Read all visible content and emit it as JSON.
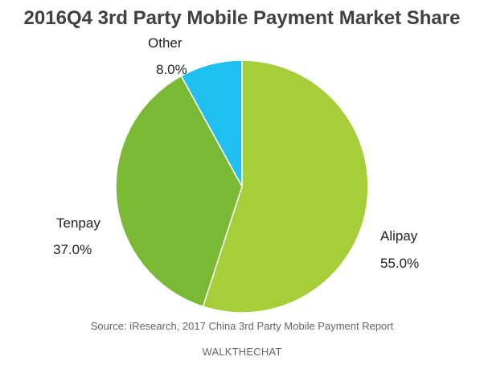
{
  "chart_data": {
    "type": "pie",
    "title": "2016Q4 3rd Party Mobile Payment Market Share",
    "slices": [
      {
        "label": "Alipay",
        "value": 55.0,
        "value_label": "55.0%",
        "color": "#a6ce39"
      },
      {
        "label": "Tenpay",
        "value": 37.0,
        "value_label": "37.0%",
        "color": "#7ab934"
      },
      {
        "label": "Other",
        "value": 8.0,
        "value_label": "8.0%",
        "color": "#1fc0f0"
      }
    ],
    "start_angle": "12 o'clock",
    "direction": "clockwise",
    "legend": "none"
  },
  "footer": {
    "source": "Source: iResearch, 2017 China 3rd Party Mobile Payment Report",
    "brand": "WALKTHECHAT"
  }
}
